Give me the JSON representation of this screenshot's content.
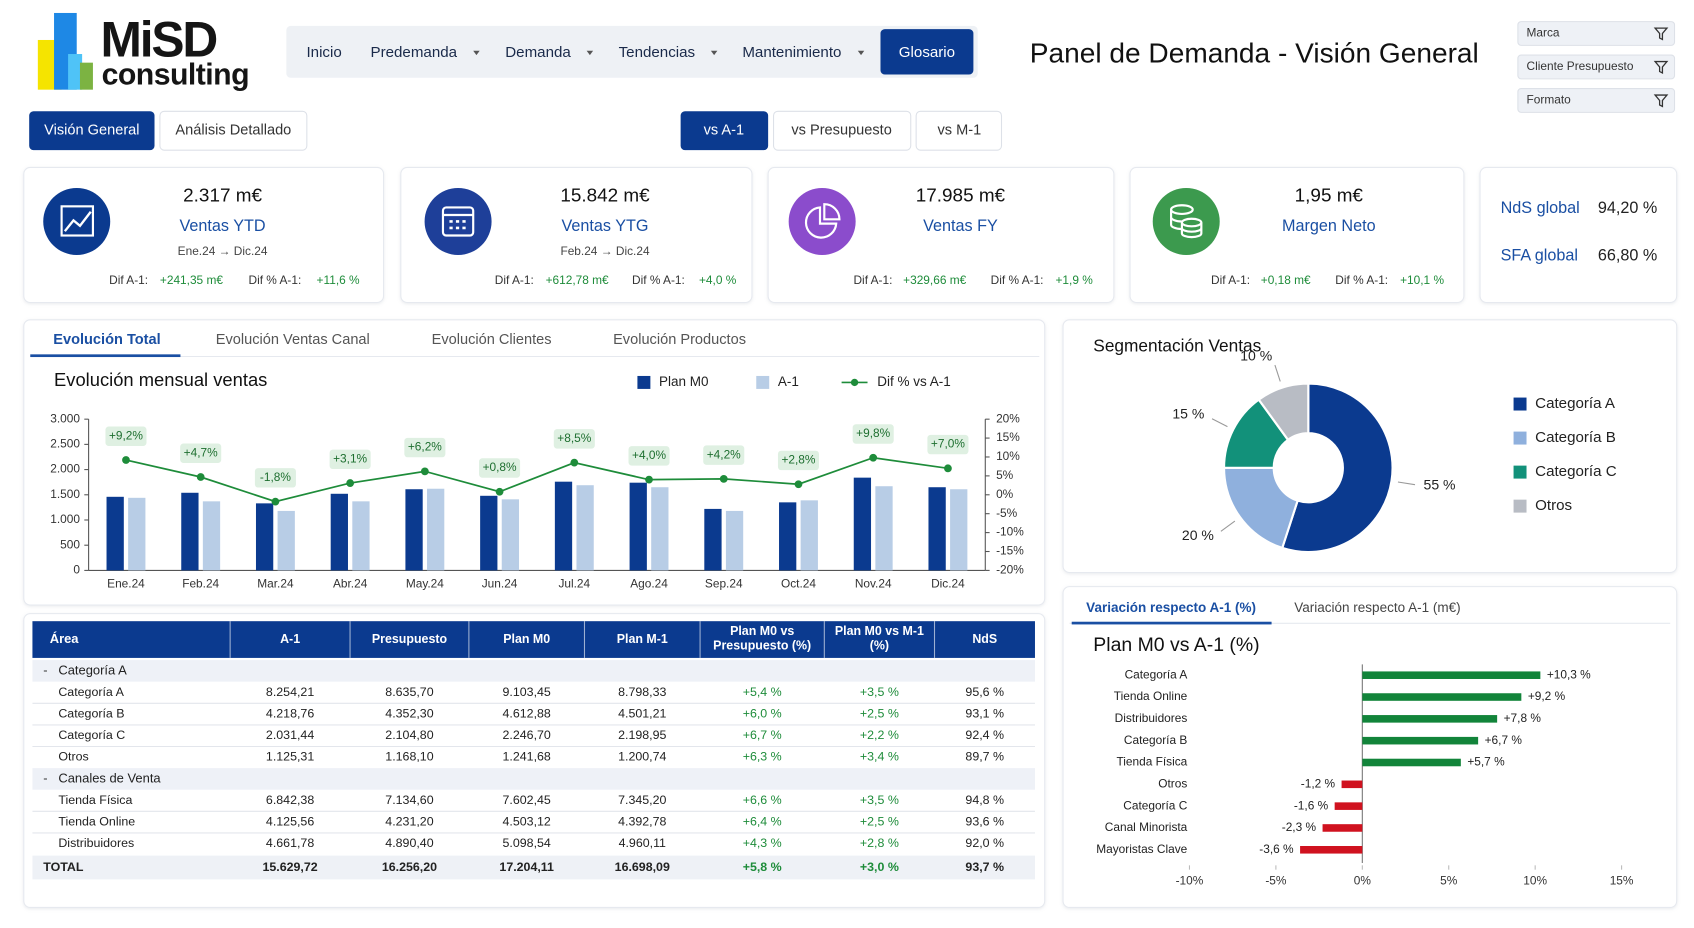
{
  "header": {
    "logo_top": "MiSD",
    "logo_bottom": "consulting",
    "nav": [
      "Inicio",
      "Predemanda",
      "Demanda",
      "Tendencias",
      "Mantenimiento",
      "Glosario"
    ],
    "title": "Panel de Demanda - Visión General",
    "filters": [
      "Marca",
      "Cliente Presupuesto",
      "Formato"
    ]
  },
  "view_tabs": [
    "Visión General",
    "Análisis Detallado"
  ],
  "compare_tabs": [
    "vs A-1",
    "vs Presupuesto",
    "vs M-1"
  ],
  "kpis": [
    {
      "value": "2.317 m€",
      "label": "Ventas YTD",
      "period": "Ene.24 → Dic.24",
      "dif_label": "Dif A-1:",
      "dif": "+241,35 m€",
      "dif_pct_label": "Dif % A-1:",
      "dif_pct": "+11,6 %"
    },
    {
      "value": "15.842 m€",
      "label": "Ventas YTG",
      "period": "Feb.24 → Dic.24",
      "dif_label": "Dif A-1:",
      "dif": "+612,78 m€",
      "dif_pct_label": "Dif % A-1:",
      "dif_pct": "+4,0 %"
    },
    {
      "value": "17.985 m€",
      "label": "Ventas FY",
      "dif_label": "Dif A-1:",
      "dif": "+329,66 m€",
      "dif_pct_label": "Dif % A-1:",
      "dif_pct": "+1,9 %"
    },
    {
      "value": "1,95 m€",
      "label": "Margen Neto",
      "dif_label": "Dif A-1:",
      "dif": "+0,18 m€",
      "dif_pct_label": "Dif % A-1:",
      "dif_pct": "+10,1 %"
    }
  ],
  "global": [
    {
      "label": "NdS global",
      "value": "94,20 %"
    },
    {
      "label": "SFA global",
      "value": "66,80 %"
    }
  ],
  "evolution_tabs": [
    "Evolución Total",
    "Evolución Ventas Canal",
    "Evolución Clientes",
    "Evolución Productos"
  ],
  "segment_tabs": [
    "Variación respecto A-1 (%)",
    "Variación respecto A-1 (m€)"
  ],
  "chart_data": [
    {
      "type": "bar",
      "title": "Evolución mensual ventas",
      "categories": [
        "Ene.24",
        "Feb.24",
        "Mar.24",
        "Abr.24",
        "May.24",
        "Jun.24",
        "Jul.24",
        "Ago.24",
        "Sep.24",
        "Oct.24",
        "Nov.24",
        "Dic.24"
      ],
      "series": [
        {
          "name": "Plan M0",
          "type": "bar",
          "color": "#0b3a8f",
          "values": [
            1460,
            1540,
            1330,
            1520,
            1610,
            1480,
            1760,
            1740,
            1220,
            1350,
            1840,
            1650
          ]
        },
        {
          "name": "A-1",
          "type": "bar",
          "color": "#b8cde6",
          "values": [
            1440,
            1370,
            1180,
            1370,
            1620,
            1410,
            1690,
            1650,
            1180,
            1390,
            1670,
            1610
          ]
        },
        {
          "name": "Dif % vs A-1",
          "type": "line",
          "axis": "y2",
          "color": "#1e8c3a",
          "values": [
            9.2,
            4.7,
            -1.8,
            3.1,
            6.2,
            0.8,
            8.5,
            4.0,
            4.2,
            2.8,
            9.8,
            7.0
          ],
          "value_labels": [
            "+9,2%",
            "+4,7%",
            "-1,8%",
            "+3,1%",
            "+6,2%",
            "+0,8%",
            "+8,5%",
            "+4,0%",
            "+4,2%",
            "+2,8%",
            "+9,8%",
            "+7,0%"
          ]
        }
      ],
      "ylim": [
        0,
        3000
      ],
      "yticks": [
        0,
        500,
        {
          "value": 1000,
          "label": "1.000"
        },
        {
          "value": 1500,
          "label": "1.500"
        },
        {
          "value": 2000,
          "label": "2.000"
        },
        {
          "value": 2500,
          "label": "2.500"
        },
        {
          "value": 3000,
          "label": "3.000"
        }
      ],
      "y2lim": [
        -20,
        20
      ],
      "y2ticks": [
        {
          "value": -20,
          "label": "-20%"
        },
        {
          "value": -15,
          "label": "-15%"
        },
        {
          "value": -10,
          "label": "-10%"
        },
        {
          "value": -5,
          "label": "-5%"
        },
        {
          "value": 0,
          "label": "0%"
        },
        {
          "value": 5,
          "label": "5%"
        },
        {
          "value": 10,
          "label": "10%"
        },
        {
          "value": 15,
          "label": "15%"
        },
        {
          "value": 20,
          "label": "20%"
        }
      ],
      "grid": false
    },
    {
      "type": "pie",
      "title": "Segmentación Ventas",
      "categories": [
        "Categoría A",
        "Categoría B",
        "Categoría C",
        "Otros"
      ],
      "values": [
        55,
        20,
        15,
        10
      ],
      "value_labels": [
        "55 %",
        "20 %",
        "15 %",
        "10 %"
      ],
      "colors": [
        "#0b3a8f",
        "#8fb0dd",
        "#12917a",
        "#b8bcc4"
      ]
    },
    {
      "type": "bar",
      "orientation": "horizontal",
      "title": "Plan M0 vs A-1 (%)",
      "categories": [
        "Categoría A",
        "Tienda Online",
        "Distribuidores",
        "Categoría B",
        "Tienda Física",
        "Otros",
        "Categoría C",
        "Canal Minorista",
        "Mayoristas Clave"
      ],
      "values": [
        10.3,
        9.2,
        7.8,
        6.7,
        5.7,
        -1.2,
        -1.6,
        -2.3,
        -3.6
      ],
      "value_labels": [
        "+10,3 %",
        "+9,2 %",
        "+7,8 %",
        "+6,7 %",
        "+5,7 %",
        "-1,2 %",
        "-1,6 %",
        "-2,3 %",
        "-3,6 %"
      ],
      "positive_color": "#12843a",
      "negative_color": "#d0121f",
      "xlim": [
        -10,
        15
      ],
      "xticks": [
        {
          "value": -10,
          "label": "-10%"
        },
        {
          "value": -5,
          "label": "-5%"
        },
        {
          "value": 0,
          "label": "0%"
        },
        {
          "value": 5,
          "label": "5%"
        },
        {
          "value": 10,
          "label": "10%"
        },
        {
          "value": 15,
          "label": "15%"
        }
      ]
    }
  ],
  "table": {
    "headers": [
      "Área",
      "A-1",
      "Presupuesto",
      "Plan M0",
      "Plan M-1",
      "Plan M0 vs Presupuesto (%)",
      "Plan M0 vs M-1 (%)",
      "NdS"
    ],
    "rows": [
      [
        "Categoría A"
      ],
      [
        "Categoría A",
        "8.254,21",
        "8.635,70",
        "9.103,45",
        "8.798,33",
        "+5,4 %",
        "+3,5 %",
        "95,6 %"
      ],
      [
        "Categoría B",
        "4.218,76",
        "4.352,30",
        "4.612,88",
        "4.501,21",
        "+6,0 %",
        "+2,5 %",
        "93,1 %"
      ],
      [
        "Categoría C",
        "2.031,44",
        "2.104,80",
        "2.246,70",
        "2.198,95",
        "+6,7 %",
        "+2,2 %",
        "92,4 %"
      ],
      [
        "Otros",
        "1.125,31",
        "1.168,10",
        "1.241,68",
        "1.200,74",
        "+6,3 %",
        "+3,4 %",
        "89,7 %"
      ],
      [
        "Canales de Venta"
      ],
      [
        "Tienda Física",
        "6.842,38",
        "7.134,60",
        "7.602,45",
        "7.345,20",
        "+6,6 %",
        "+3,5 %",
        "94,8 %"
      ],
      [
        "Tienda Online",
        "4.125,56",
        "4.231,20",
        "4.503,12",
        "4.392,78",
        "+6,4 %",
        "+2,5 %",
        "93,6 %"
      ],
      [
        "Distribuidores",
        "4.661,78",
        "4.890,40",
        "5.098,54",
        "4.960,11",
        "+4,3 %",
        "+2,8 %",
        "92,0 %"
      ],
      [
        "TOTAL",
        "15.629,72",
        "16.256,20",
        "17.204,11",
        "16.698,09",
        "+5,8 %",
        "+3,0 %",
        "93,7 %"
      ]
    ]
  }
}
